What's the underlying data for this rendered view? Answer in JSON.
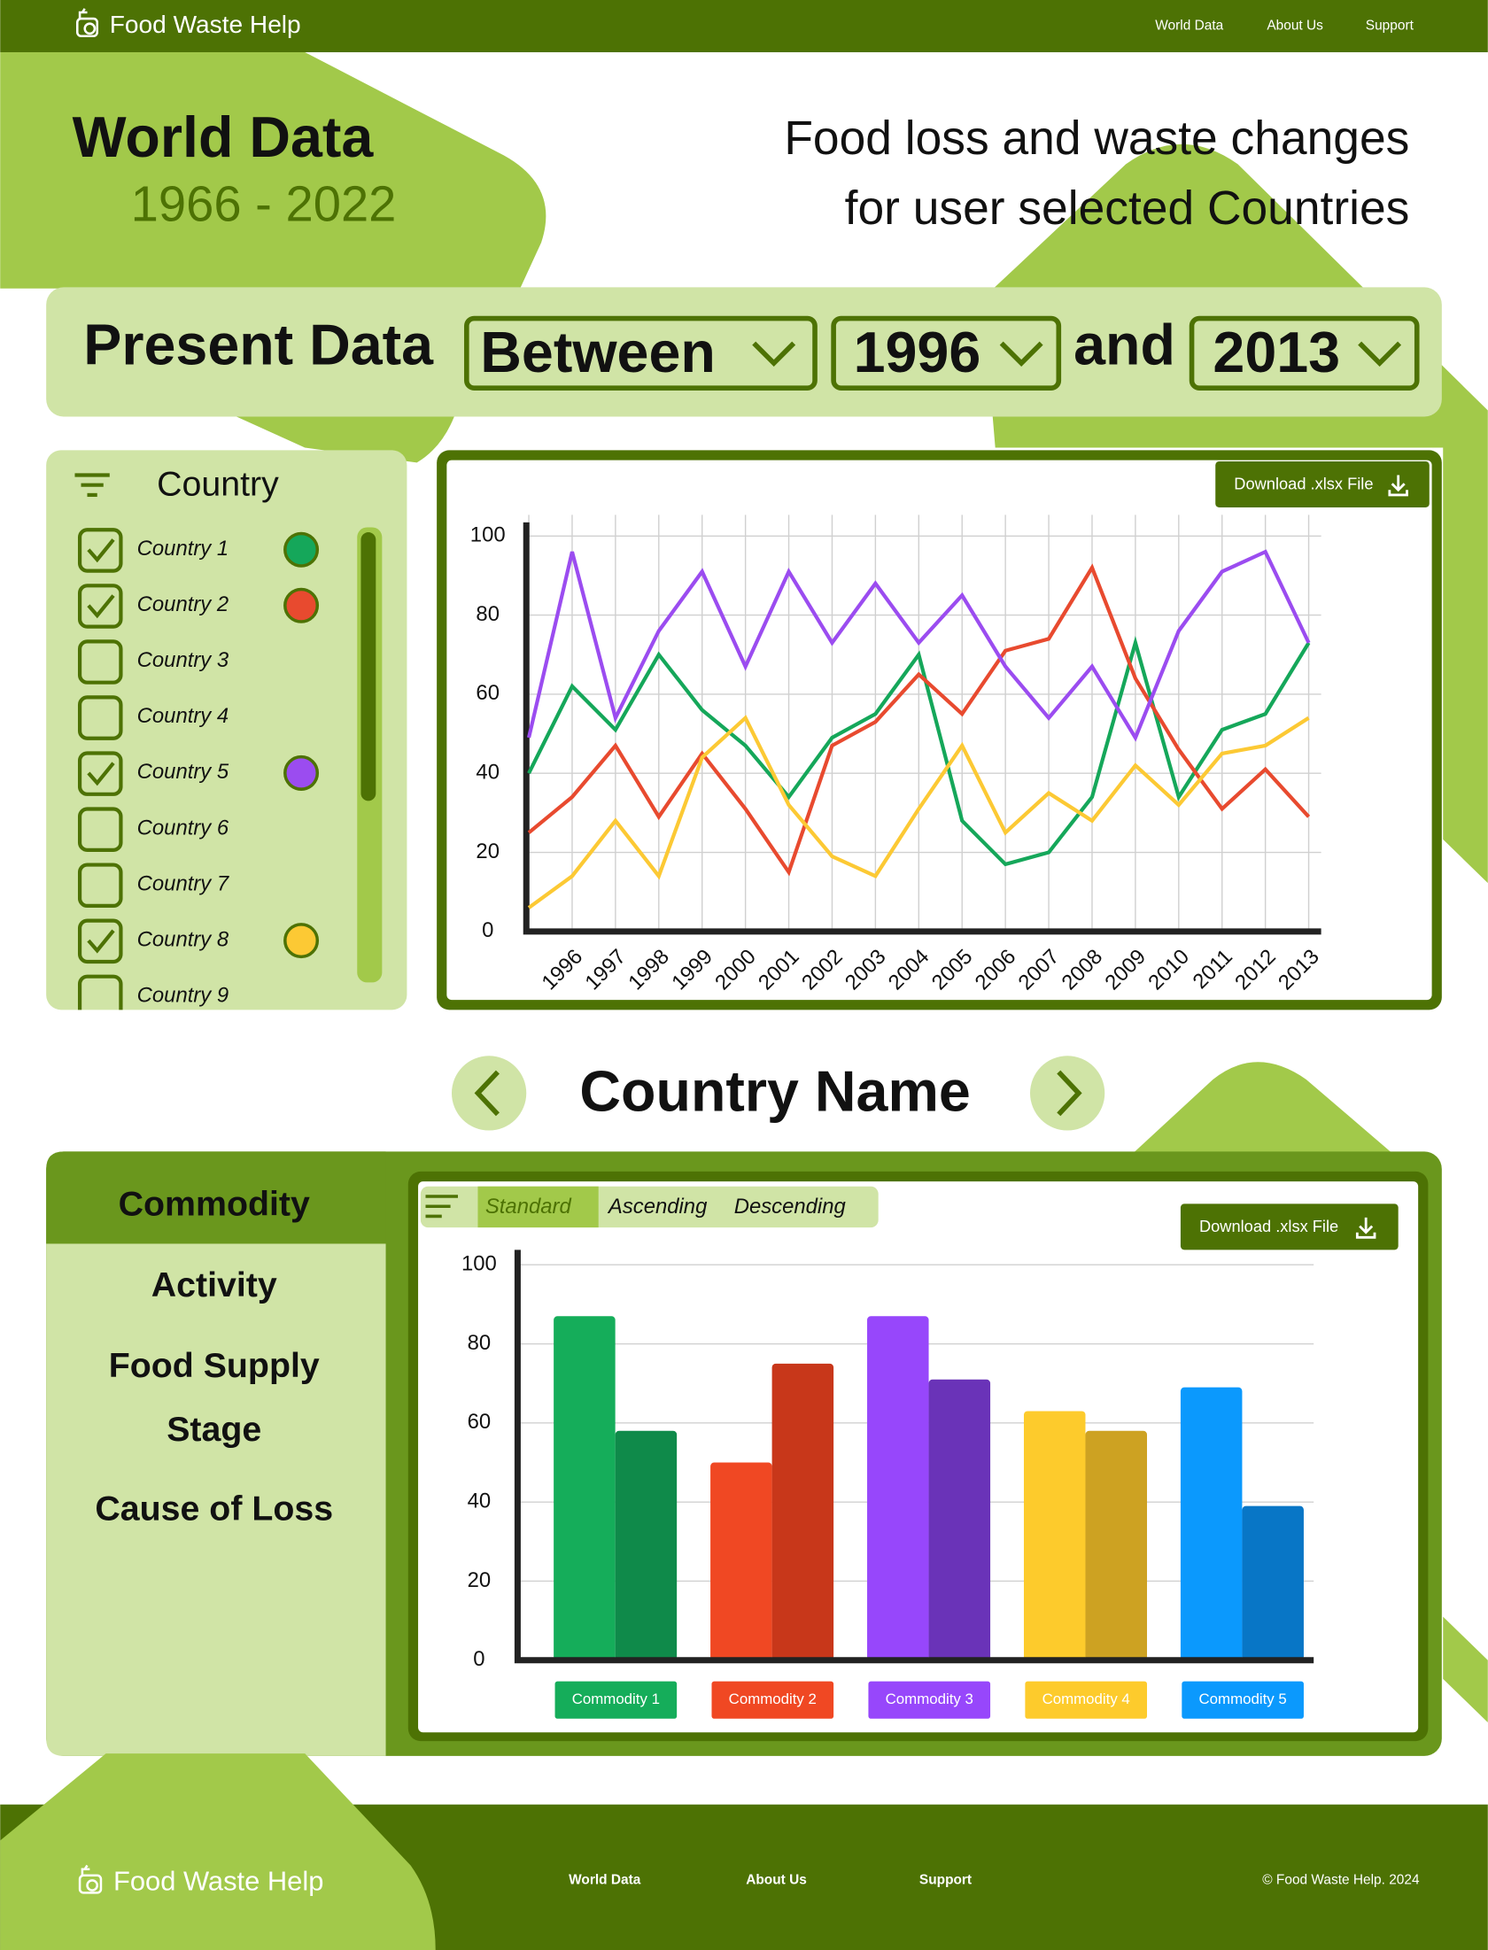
{
  "header": {
    "brand": "Food Waste Help",
    "nav": [
      "World Data",
      "About Us",
      "Support"
    ]
  },
  "hero": {
    "title": "World Data",
    "years": "1966 - 2022",
    "subtitle_lines": [
      "Food loss and waste changes",
      "for user selected Countries"
    ]
  },
  "filter": {
    "label": "Present Data",
    "mode": "Between",
    "start": "1996",
    "connector": "and",
    "end": "2013"
  },
  "country_list": {
    "title": "Country",
    "items": [
      {
        "label": "Country 1",
        "checked": true,
        "color": "#15a75a"
      },
      {
        "label": "Country 2",
        "checked": true,
        "color": "#e84a2f"
      },
      {
        "label": "Country 3",
        "checked": false
      },
      {
        "label": "Country 4",
        "checked": false
      },
      {
        "label": "Country 5",
        "checked": true,
        "color": "#9b4cf0"
      },
      {
        "label": "Country 6",
        "checked": false
      },
      {
        "label": "Country 7",
        "checked": false
      },
      {
        "label": "Country 8",
        "checked": true,
        "color": "#fcc934"
      },
      {
        "label": "Country 9",
        "checked": false
      }
    ]
  },
  "line_chart": {
    "type": "line",
    "button": "Download .xlsx File",
    "categories": [
      null,
      "1996",
      "1997",
      "1998",
      "1999",
      "2000",
      "2001",
      "2002",
      "2003",
      "2004",
      "2005",
      "2006",
      "2007",
      "2008",
      "2009",
      "2010",
      "2011",
      "2012",
      "2013"
    ],
    "series": [
      {
        "color": "#15a75a",
        "values": [
          40,
          62,
          51,
          70,
          56,
          47,
          34,
          49,
          55,
          70,
          28,
          17,
          20,
          34,
          73,
          34,
          51,
          55,
          73
        ]
      },
      {
        "color": "#e84a2f",
        "values": [
          25,
          34,
          47,
          29,
          45,
          31,
          15,
          47,
          53,
          65,
          55,
          71,
          74,
          92,
          64,
          46,
          31,
          41,
          29
        ]
      },
      {
        "color": "#9b4cf0",
        "values": [
          49,
          96,
          54,
          76,
          91,
          67,
          91,
          73,
          88,
          73,
          85,
          67,
          54,
          67,
          49,
          76,
          91,
          96,
          73
        ]
      },
      {
        "color": "#fcc934",
        "values": [
          6,
          14,
          28,
          14,
          44,
          54,
          32,
          19,
          14,
          31,
          47,
          25,
          35,
          28,
          42,
          32,
          45,
          47,
          54
        ]
      }
    ],
    "ylim": [
      0,
      100
    ],
    "yticks": [
      0,
      20,
      40,
      60,
      80,
      100
    ],
    "grid": true
  },
  "country_nav": {
    "title": "Country Name"
  },
  "commodity_tabs": {
    "tabs": [
      [
        "Commodity"
      ],
      [
        "Activity"
      ],
      [
        "Food Supply",
        "Stage"
      ],
      [
        "Cause of Loss"
      ]
    ],
    "selected": 0
  },
  "bar_chart": {
    "type": "bar",
    "sort_options": [
      "Standard",
      "Ascending",
      "Descending"
    ],
    "sort_selected": 0,
    "button": "Download .xlsx File",
    "categories": [
      "Commodity 1",
      "Commodity 2",
      "Commodity 3",
      "Commodity 4",
      "Commodity 5"
    ],
    "series": [
      {
        "colors": [
          "#15ad5a",
          "#f04823",
          "#9747fb",
          "#fdcb2c",
          "#0b99fd"
        ],
        "values": [
          87,
          50,
          87,
          63,
          69
        ]
      },
      {
        "colors": [
          "#0f8a4a",
          "#c8371a",
          "#6a33b8",
          "#cda222",
          "#0876c6"
        ],
        "values": [
          58,
          75,
          71,
          58,
          39
        ]
      }
    ],
    "ylim": [
      0,
      100
    ],
    "yticks": [
      0,
      20,
      40,
      60,
      80,
      100
    ],
    "grid": true
  },
  "footer": {
    "brand": "Food Waste Help",
    "nav": [
      "World Data",
      "About Us",
      "Support"
    ],
    "copyright": "© Food Waste Help. 2024"
  }
}
